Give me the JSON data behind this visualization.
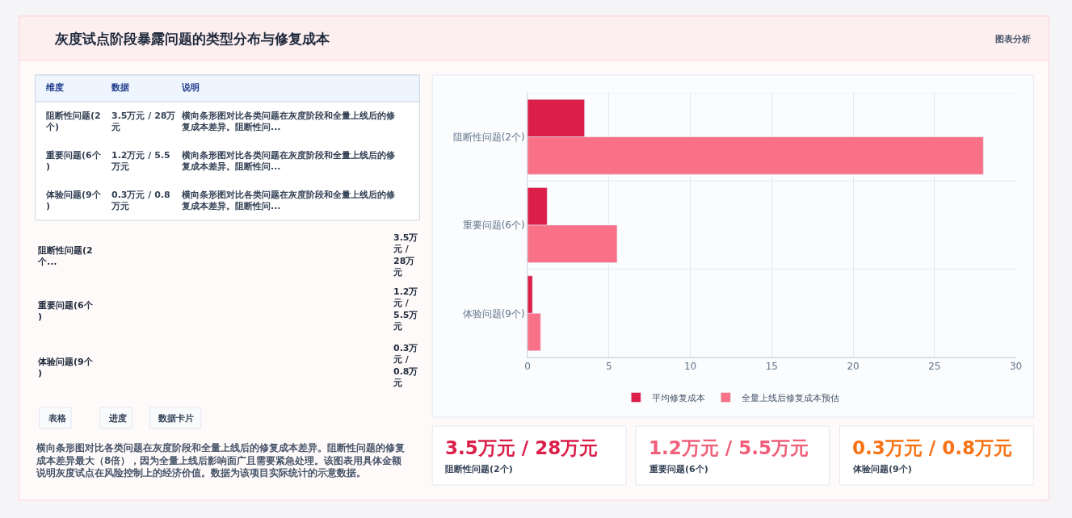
{
  "chart_data": [
    {
      "type": "other",
      "title": "灰度试点阶段暴露问题的类型分布与修复成本",
      "annotations": [
        "图表分析"
      ]
    },
    {
      "type": "other",
      "annotations": [
        "维度",
        "数据",
        "说明",
        "阻断性问题(2个)",
        "3.5万元 / 28万元",
        "横向条形图对比各类问题在灰度阶段和全量上线后的修复成本差异。阻断性问...",
        "重要问题(6个)",
        "1.2万元 / 5.5万元",
        "横向条形图对比各类问题在灰度阶段和全量上线后的修复成本差异。阻断性问...",
        "体验问题(9个)",
        "0.3万元 / 0.8万元",
        "横向条形图对比各类问题在灰度阶段和全量上线后的修复成本差异。阻断性问..."
      ]
    },
    {
      "type": "other",
      "annotations": [
        "阻断性问题(2个...",
        "3.5万元 / 28万元",
        "重要问题(6个)",
        "1.2万元 / 5.5万元",
        "体验问题(9个)",
        "0.3万元 / 0.8万元"
      ]
    },
    {
      "type": "other",
      "annotations": [
        "表格",
        "进度",
        "数据卡片",
        "横向条形图对比各类问题在灰度阶段和全量上线后的修复成本差异。阻断性问题的修复成本差异最大（8倍），因为全量上线后影响面广且需要紧急处理。该图表用具体金额说明灰度试点在风险控制上的经济价值。数据为该项目实际统计的示意数据。"
      ]
    },
    {
      "type": "bar",
      "orientation": "horizontal",
      "categories": [
        "阻断性问题(2个)",
        "重要问题(6个)",
        "体验问题(9个)"
      ],
      "series": [
        {
          "name": "平均修复成本",
          "color": "#dc1f4a",
          "values": [
            3.5,
            1.2,
            0.3
          ]
        },
        {
          "name": "全量上线后修复成本预估",
          "color": "#f87186",
          "values": [
            28,
            5.5,
            0.8
          ]
        }
      ],
      "xlim": [
        0,
        30
      ],
      "xticks": [
        0,
        5,
        10,
        15,
        20,
        25,
        30
      ],
      "grid": true,
      "legend": "bottom"
    },
    {
      "type": "other",
      "color": "#dc1f4a",
      "annotations": [
        "3.5万元 / 28万元",
        "阻断性问题(2个)"
      ]
    },
    {
      "type": "other",
      "color": "#f0607a",
      "annotations": [
        "1.2万元 / 5.5万元",
        "重要问题(6个)"
      ]
    },
    {
      "type": "other",
      "color": "#f97316",
      "annotations": [
        "0.3万元 / 0.8万元",
        "体验问题(9个)"
      ]
    }
  ]
}
